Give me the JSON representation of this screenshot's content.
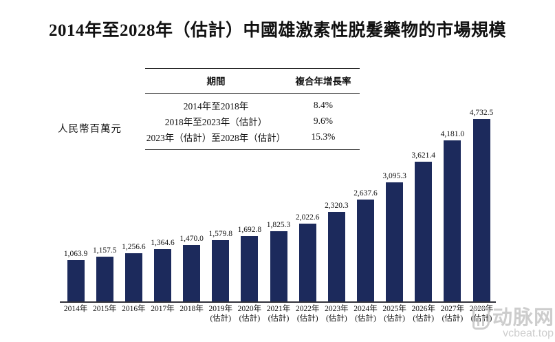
{
  "title": "2014年至2028年（估計）中國雄激素性脱髮藥物的市場規模",
  "unit_label": "人民幣百萬元",
  "cagr_table": {
    "headers": [
      "期間",
      "複合年增長率"
    ],
    "rows": [
      {
        "period": "2014年至2018年",
        "cagr": "8.4%"
      },
      {
        "period": "2018年至2023年（估計）",
        "cagr": "9.6%"
      },
      {
        "period": "2023年（估計）至2028年（估計）",
        "cagr": "15.3%"
      }
    ]
  },
  "chart_data": {
    "type": "bar",
    "title": "2014年至2028年（估計）中國雄激素性脱髮藥物的市場規模",
    "ylabel": "人民幣百萬元",
    "xlabel": "",
    "ylim": [
      0,
      4732.5
    ],
    "grid": false,
    "legend": "none",
    "bar_color": "#1c2a5c",
    "categories": [
      "2014年",
      "2015年",
      "2016年",
      "2017年",
      "2018年",
      "2019年",
      "2020年",
      "2021年",
      "2022年",
      "2023年",
      "2024年",
      "2025年",
      "2026年",
      "2027年",
      "2028年"
    ],
    "estimate_note": "(估計)",
    "estimate_start_index": 5,
    "values": [
      1063.9,
      1157.5,
      1256.6,
      1364.6,
      1470.0,
      1579.8,
      1692.8,
      1825.3,
      2022.6,
      2320.3,
      2637.6,
      3095.3,
      3621.4,
      4181.0,
      4732.5
    ],
    "value_labels": [
      "1,063.9",
      "1,157.5",
      "1,256.6",
      "1,364.6",
      "1,470.0",
      "1,579.8",
      "1,692.8",
      "1,825.3",
      "2,022.6",
      "2,320.3",
      "2,637.6",
      "3,095.3",
      "3,621.4",
      "4,181.0",
      "4,732.5"
    ]
  },
  "watermark": {
    "brand": "动脉网",
    "domain": "vcbeat.top",
    "color": "#c9c9c9"
  }
}
